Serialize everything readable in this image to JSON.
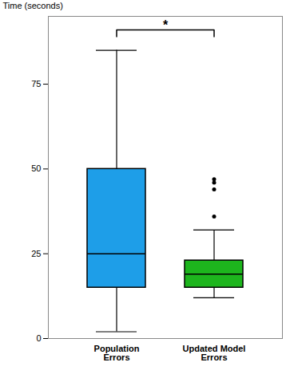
{
  "chart_data": {
    "type": "box",
    "ylabel": "Time (seconds)",
    "categories": [
      "Population\nErrors",
      "Updated Model\nErrors"
    ],
    "boxes": [
      {
        "whislo": 2,
        "q1": 15,
        "med": 25,
        "q3": 50,
        "whishi": 85,
        "fliers": []
      },
      {
        "whislo": 12,
        "q1": 15,
        "med": 19,
        "q3": 23,
        "whishi": 32,
        "fliers": [
          36,
          44,
          46,
          47
        ]
      }
    ],
    "colors": [
      "#1E9EE8",
      "#1DB51D"
    ],
    "ylim": [
      0,
      95
    ],
    "yticks": [
      0,
      25,
      50,
      75
    ],
    "annotations": [
      {
        "text": "*",
        "y": 91,
        "x": [
          "Population\nErrors",
          "Updated Model\nErrors"
        ]
      }
    ]
  }
}
